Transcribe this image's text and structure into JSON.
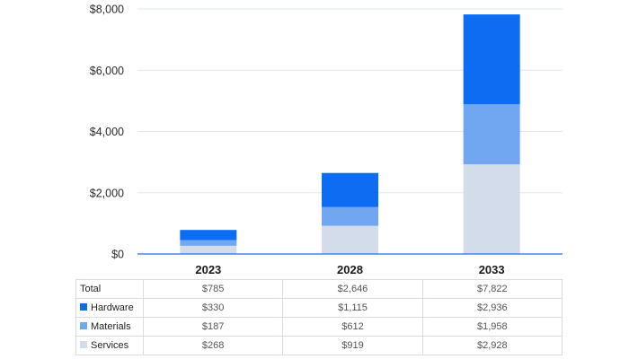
{
  "chart_data": {
    "type": "bar",
    "stacked": true,
    "categories": [
      "2023",
      "2028",
      "2033"
    ],
    "series": [
      {
        "name": "Services",
        "values": [
          268,
          919,
          2928
        ],
        "color": "#d3dceb"
      },
      {
        "name": "Materials",
        "values": [
          187,
          612,
          1958
        ],
        "color": "#70a7f0"
      },
      {
        "name": "Hardware",
        "values": [
          330,
          1115,
          2936
        ],
        "color": "#0c6cf2"
      }
    ],
    "ylim": [
      0,
      8000
    ],
    "yticks": [
      0,
      2000,
      4000,
      6000,
      8000
    ],
    "ytick_labels": [
      "$0",
      "$2,000",
      "$4,000",
      "$6,000",
      "$8,000"
    ],
    "grid": true,
    "legend": "table-rows",
    "table": {
      "rows": [
        {
          "label": "Total",
          "values": [
            "$785",
            "$2,646",
            "$7,822"
          ]
        },
        {
          "label": "Hardware",
          "values": [
            "$330",
            "$1,115",
            "$2,936"
          ],
          "color": "#0c6cf2"
        },
        {
          "label": "Materials",
          "values": [
            "$187",
            "$612",
            "$1,958"
          ],
          "color": "#70a7f0"
        },
        {
          "label": "Services",
          "values": [
            "$268",
            "$919",
            "$2,928"
          ],
          "color": "#d3dceb"
        }
      ]
    }
  }
}
